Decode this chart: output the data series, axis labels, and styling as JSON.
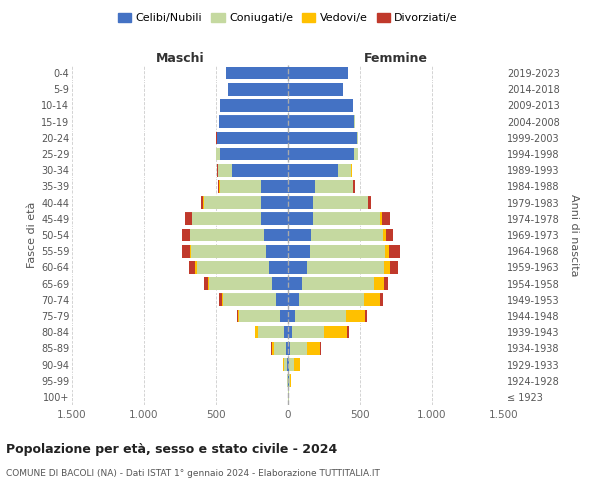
{
  "age_groups": [
    "100+",
    "95-99",
    "90-94",
    "85-89",
    "80-84",
    "75-79",
    "70-74",
    "65-69",
    "60-64",
    "55-59",
    "50-54",
    "45-49",
    "40-44",
    "35-39",
    "30-34",
    "25-29",
    "20-24",
    "15-19",
    "10-14",
    "5-9",
    "0-4"
  ],
  "birth_years": [
    "≤ 1923",
    "1924-1928",
    "1929-1933",
    "1934-1938",
    "1939-1943",
    "1944-1948",
    "1949-1953",
    "1954-1958",
    "1959-1963",
    "1964-1968",
    "1969-1973",
    "1974-1978",
    "1979-1983",
    "1984-1988",
    "1989-1993",
    "1994-1998",
    "1999-2003",
    "2004-2008",
    "2009-2013",
    "2014-2018",
    "2019-2023"
  ],
  "male": {
    "celibi": [
      2,
      3,
      5,
      15,
      30,
      55,
      80,
      110,
      135,
      155,
      170,
      185,
      185,
      190,
      390,
      470,
      490,
      480,
      470,
      415,
      430
    ],
    "coniugati": [
      1,
      4,
      22,
      85,
      175,
      285,
      370,
      440,
      500,
      520,
      510,
      480,
      400,
      285,
      95,
      28,
      5,
      2,
      1,
      0,
      0
    ],
    "vedovi": [
      0,
      1,
      5,
      12,
      22,
      8,
      8,
      8,
      8,
      6,
      4,
      3,
      2,
      1,
      1,
      1,
      1,
      0,
      0,
      0,
      0
    ],
    "divorziati": [
      0,
      0,
      1,
      3,
      5,
      8,
      18,
      28,
      45,
      55,
      55,
      50,
      18,
      8,
      4,
      2,
      1,
      0,
      0,
      0,
      0
    ]
  },
  "female": {
    "nubili": [
      3,
      4,
      7,
      15,
      28,
      50,
      75,
      95,
      135,
      155,
      160,
      175,
      175,
      185,
      350,
      460,
      480,
      460,
      450,
      385,
      415
    ],
    "coniugate": [
      2,
      7,
      35,
      115,
      220,
      350,
      450,
      500,
      530,
      520,
      500,
      465,
      380,
      265,
      90,
      26,
      5,
      2,
      0,
      0,
      0
    ],
    "vedove": [
      1,
      7,
      38,
      95,
      165,
      135,
      115,
      75,
      45,
      28,
      18,
      13,
      4,
      3,
      2,
      1,
      0,
      0,
      0,
      0,
      0
    ],
    "divorziate": [
      0,
      0,
      2,
      4,
      8,
      13,
      18,
      22,
      55,
      75,
      50,
      55,
      18,
      13,
      4,
      2,
      1,
      0,
      0,
      0,
      0
    ]
  },
  "colors": {
    "celibi": "#4472c4",
    "coniugati": "#c5d9a0",
    "vedovi": "#ffc000",
    "divorziati": "#c0392b"
  },
  "xlim": 1500,
  "xlabel_ticks": [
    -1500,
    -1000,
    -500,
    0,
    500,
    1000,
    1500
  ],
  "xlabel_labels": [
    "1.500",
    "1.000",
    "500",
    "0",
    "500",
    "1.000",
    "1.500"
  ],
  "title": "Popolazione per età, sesso e stato civile - 2024",
  "subtitle": "COMUNE DI BACOLI (NA) - Dati ISTAT 1° gennaio 2024 - Elaborazione TUTTITALIA.IT",
  "ylabel_left": "Fasce di età",
  "ylabel_right": "Anni di nascita",
  "maschi_label": "Maschi",
  "femmine_label": "Femmine",
  "legend_labels": [
    "Celibi/Nubili",
    "Coniugati/e",
    "Vedovi/e",
    "Divorziati/e"
  ],
  "background_color": "#ffffff",
  "bar_height": 0.78
}
